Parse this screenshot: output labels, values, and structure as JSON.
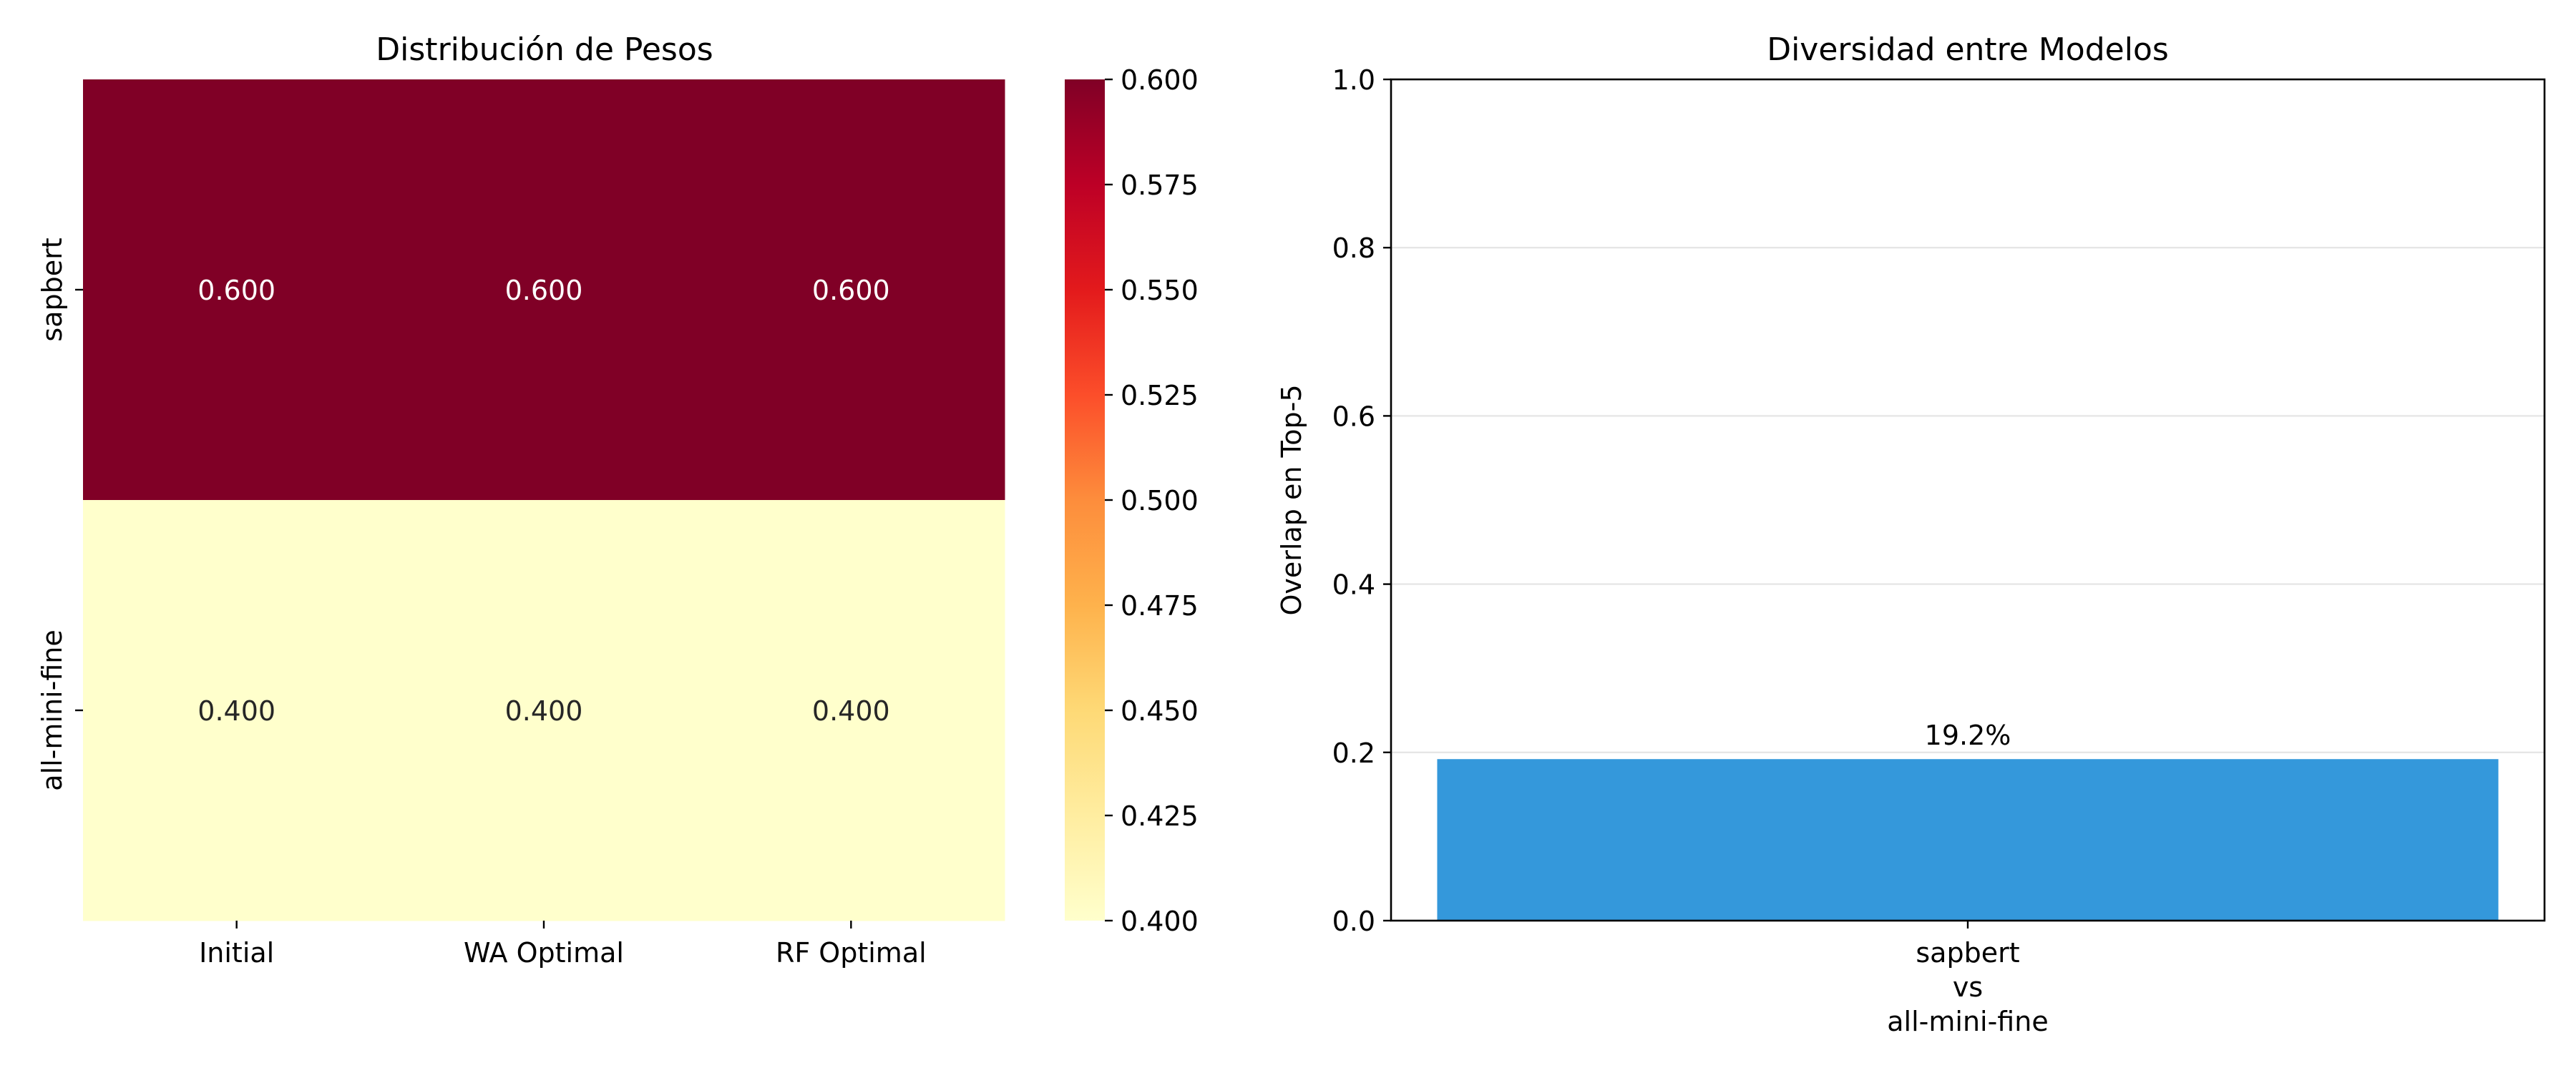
{
  "chart_data": [
    {
      "type": "heatmap",
      "title": "Distribución de Pesos",
      "rows": [
        "sapbert",
        "all-mini-fine"
      ],
      "columns": [
        "Initial",
        "WA Optimal",
        "RF Optimal"
      ],
      "values": [
        [
          0.6,
          0.6,
          0.6
        ],
        [
          0.4,
          0.4,
          0.4
        ]
      ],
      "cell_labels": [
        [
          "0.600",
          "0.600",
          "0.600"
        ],
        [
          "0.400",
          "0.400",
          "0.400"
        ]
      ],
      "colormap": "YlOrRd",
      "colorbar": {
        "range": [
          0.4,
          0.6
        ],
        "ticks": [
          0.4,
          0.425,
          0.45,
          0.475,
          0.5,
          0.525,
          0.55,
          0.575,
          0.6
        ],
        "tick_labels": [
          "0.400",
          "0.425",
          "0.450",
          "0.475",
          "0.500",
          "0.525",
          "0.550",
          "0.575",
          "0.600"
        ]
      }
    },
    {
      "type": "bar",
      "title": "Diversidad entre Modelos",
      "categories": [
        [
          "sapbert",
          "vs",
          "all-mini-fine"
        ]
      ],
      "values": [
        0.192
      ],
      "bar_labels": [
        "19.2%"
      ],
      "ylabel": "Overlap en Top-5",
      "xlabel": "",
      "ylim": [
        0,
        1.0
      ],
      "yticks": [
        0.0,
        0.2,
        0.4,
        0.6,
        0.8,
        1.0
      ],
      "ytick_labels": [
        "0.0",
        "0.2",
        "0.4",
        "0.6",
        "0.8",
        "1.0"
      ],
      "bar_color": "#3498db",
      "grid": "horizontal"
    }
  ]
}
